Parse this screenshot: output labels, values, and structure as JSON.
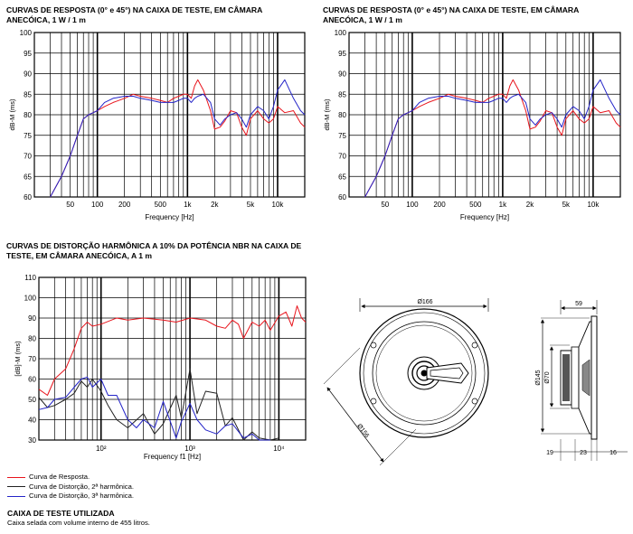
{
  "colors": {
    "response": "#e8141c",
    "harmonic2": "#222222",
    "harmonic3": "#2424c8"
  },
  "top_title_left": "CURVAS DE RESPOSTA (0° e 45°) NA CAIXA DE TESTE, EM CÂMARA ANECÓICA, 1 W / 1 m",
  "top_title_right": "CURVAS DE RESPOSTA (0° e 45°) NA CAIXA DE TESTE, EM CÂMARA ANECÓICA, 1 W / 1 m",
  "dist_title": "CURVAS DE DISTORÇÃO HARMÔNICA A 10% DA POTÊNCIA NBR NA CAIXA DE TESTE, EM CÂMARA ANECÓICA, A 1 m",
  "legend": {
    "response": "Curva de Resposta.",
    "h2": "Curva de Distorção, 2ª harmônica.",
    "h3": "Curva de Distorção, 3ª harmônica."
  },
  "test_box": {
    "heading": "CAIXA DE TESTE UTILIZADA",
    "text": "Caixa selada com volume interno de 455 litros."
  },
  "drawing": {
    "d166": "Ø166",
    "d156": "Ø156",
    "d70": "Ø70",
    "d145": "Ø145",
    "top59": "59",
    "b19": "19",
    "b23": "23",
    "b16": "16"
  },
  "chart_data": [
    {
      "type": "line",
      "xlabel": "Frequency [Hz]",
      "ylabel": "dB-M (ms)",
      "xscale": "log",
      "xlim": [
        20,
        20000
      ],
      "ylim": [
        60,
        100
      ],
      "yticks": [
        60,
        65,
        70,
        75,
        80,
        85,
        90,
        95,
        100
      ],
      "xtick_labels": [
        {
          "value": 50,
          "label": "50"
        },
        {
          "value": 100,
          "label": "100"
        },
        {
          "value": 200,
          "label": "200"
        },
        {
          "value": 500,
          "label": "500"
        },
        {
          "value": 1000,
          "label": "1k"
        },
        {
          "value": 2000,
          "label": "2k"
        },
        {
          "value": 5000,
          "label": "5k"
        },
        {
          "value": 10000,
          "label": "10k"
        }
      ],
      "grid": true,
      "series": [
        {
          "color": "red",
          "x": [
            30,
            40,
            50,
            60,
            70,
            80,
            90,
            100,
            120,
            150,
            200,
            250,
            300,
            400,
            500,
            600,
            700,
            800,
            900,
            1000,
            1100,
            1200,
            1300,
            1500,
            1800,
            2000,
            2300,
            2600,
            3000,
            3500,
            4000,
            4500,
            5000,
            6000,
            7000,
            8000,
            9000,
            10000,
            12000,
            15000,
            18000,
            20000
          ],
          "y": [
            60,
            65,
            70,
            75,
            79,
            80,
            80.5,
            81,
            82,
            83,
            84,
            85,
            84.5,
            84,
            83.5,
            83,
            84,
            84.5,
            85,
            85,
            84,
            87,
            88.5,
            86,
            81,
            76.5,
            77,
            78.5,
            81,
            80.5,
            77,
            75,
            79,
            81,
            79,
            78,
            79,
            82,
            80.5,
            81,
            78,
            77
          ]
        },
        {
          "color": "blue",
          "x": [
            30,
            40,
            50,
            60,
            70,
            80,
            90,
            100,
            120,
            150,
            200,
            250,
            300,
            400,
            500,
            600,
            700,
            800,
            900,
            1000,
            1100,
            1200,
            1300,
            1500,
            1800,
            2000,
            2300,
            2600,
            3000,
            3500,
            4000,
            4500,
            5000,
            6000,
            7000,
            8000,
            9000,
            10000,
            12000,
            15000,
            18000,
            20000
          ],
          "y": [
            60,
            65,
            70,
            75,
            79,
            80,
            80.5,
            81,
            83,
            84,
            84.5,
            84.5,
            84,
            83.5,
            83,
            83,
            83,
            83.5,
            84,
            84,
            83,
            84,
            84.5,
            85,
            83,
            79,
            77.5,
            79,
            80,
            80.5,
            79,
            77,
            80,
            82,
            81,
            79,
            82,
            86,
            88.5,
            84,
            81,
            80
          ]
        }
      ]
    },
    {
      "type": "line",
      "xlabel": "Frequency [Hz]",
      "ylabel": "dB-M (ms)",
      "xscale": "log",
      "xlim": [
        20,
        20000
      ],
      "ylim": [
        60,
        100
      ],
      "yticks": [
        60,
        65,
        70,
        75,
        80,
        85,
        90,
        95,
        100
      ],
      "xtick_labels": [
        {
          "value": 50,
          "label": "50"
        },
        {
          "value": 100,
          "label": "100"
        },
        {
          "value": 200,
          "label": "200"
        },
        {
          "value": 500,
          "label": "500"
        },
        {
          "value": 1000,
          "label": "1k"
        },
        {
          "value": 2000,
          "label": "2k"
        },
        {
          "value": 5000,
          "label": "5k"
        },
        {
          "value": 10000,
          "label": "10k"
        }
      ],
      "grid": true,
      "series": [
        {
          "color": "red",
          "x": [
            30,
            40,
            50,
            60,
            70,
            80,
            90,
            100,
            120,
            150,
            200,
            250,
            300,
            400,
            500,
            600,
            700,
            800,
            900,
            1000,
            1100,
            1200,
            1300,
            1500,
            1800,
            2000,
            2300,
            2600,
            3000,
            3500,
            4000,
            4500,
            5000,
            6000,
            7000,
            8000,
            9000,
            10000,
            12000,
            15000,
            18000,
            20000
          ],
          "y": [
            60,
            65,
            70,
            75,
            79,
            80,
            80.5,
            81,
            82,
            83,
            84,
            85,
            84.5,
            84,
            83.5,
            83,
            84,
            84.5,
            85,
            85,
            84,
            87,
            88.5,
            86,
            81,
            76.5,
            77,
            78.5,
            81,
            80.5,
            77,
            75,
            79,
            81,
            79,
            78,
            79,
            82,
            80.5,
            81,
            78,
            77
          ]
        },
        {
          "color": "blue",
          "x": [
            30,
            40,
            50,
            60,
            70,
            80,
            90,
            100,
            120,
            150,
            200,
            250,
            300,
            400,
            500,
            600,
            700,
            800,
            900,
            1000,
            1100,
            1200,
            1300,
            1500,
            1800,
            2000,
            2300,
            2600,
            3000,
            3500,
            4000,
            4500,
            5000,
            6000,
            7000,
            8000,
            9000,
            10000,
            12000,
            15000,
            18000,
            20000
          ],
          "y": [
            60,
            65,
            70,
            75,
            79,
            80,
            80.5,
            81,
            83,
            84,
            84.5,
            84.5,
            84,
            83.5,
            83,
            83,
            83,
            83.5,
            84,
            84,
            83,
            84,
            84.5,
            85,
            83,
            79,
            77.5,
            79,
            80,
            80.5,
            79,
            77,
            80,
            82,
            81,
            79,
            82,
            86,
            88.5,
            84,
            81,
            80
          ]
        }
      ]
    },
    {
      "type": "line",
      "xlabel": "Frequency f1 [Hz]",
      "ylabel": "[dB]-M (ms)",
      "xscale": "log",
      "xlim": [
        20,
        20000
      ],
      "ylim": [
        30,
        110
      ],
      "yticks": [
        30,
        40,
        50,
        60,
        70,
        80,
        90,
        100,
        110
      ],
      "xtick_labels": [
        {
          "value": 100,
          "label": "10²"
        },
        {
          "value": 1000,
          "label": "10³"
        },
        {
          "value": 10000,
          "label": "10⁴"
        }
      ],
      "grid": true,
      "series": [
        {
          "name": "Curva de Resposta.",
          "color": "red",
          "x": [
            20,
            25,
            30,
            40,
            50,
            60,
            70,
            80,
            100,
            150,
            200,
            300,
            500,
            700,
            1000,
            1500,
            2000,
            2500,
            3000,
            3500,
            4000,
            5000,
            6000,
            7000,
            8000,
            10000,
            12000,
            14000,
            16000,
            18000,
            20000
          ],
          "y": [
            55,
            52,
            60,
            65,
            75,
            85,
            88,
            86,
            87,
            90,
            89,
            90,
            89,
            88,
            90,
            89,
            86,
            85,
            89,
            87,
            80,
            88,
            86,
            89,
            84,
            91,
            93,
            86,
            96,
            90,
            88
          ]
        },
        {
          "name": "Curva de Distorção, 2ª harmônica.",
          "color": "black",
          "x": [
            20,
            25,
            30,
            40,
            50,
            60,
            70,
            80,
            100,
            120,
            150,
            200,
            300,
            400,
            500,
            700,
            800,
            1000,
            1200,
            1500,
            2000,
            2500,
            3000,
            4000,
            5000,
            6000,
            8000,
            10000
          ],
          "y": [
            51,
            46,
            47,
            50,
            53,
            59,
            56,
            60,
            54,
            47,
            40,
            36,
            43,
            33,
            38,
            52,
            41,
            65,
            43,
            54,
            53,
            37,
            41,
            30,
            34,
            31,
            30,
            31
          ]
        },
        {
          "name": "Curva de Distorção, 3ª harmônica.",
          "color": "blue",
          "x": [
            20,
            25,
            30,
            40,
            50,
            60,
            70,
            80,
            100,
            120,
            150,
            200,
            250,
            300,
            400,
            500,
            700,
            800,
            1000,
            1200,
            1500,
            2000,
            2500,
            3000,
            4000,
            5000,
            6000,
            8000
          ],
          "y": [
            45,
            46,
            50,
            51,
            56,
            60,
            61,
            56,
            60,
            52,
            52,
            40,
            36,
            40,
            36,
            49,
            31,
            39,
            48,
            40,
            35,
            33,
            37,
            38,
            31,
            33,
            30,
            30
          ]
        }
      ]
    }
  ]
}
